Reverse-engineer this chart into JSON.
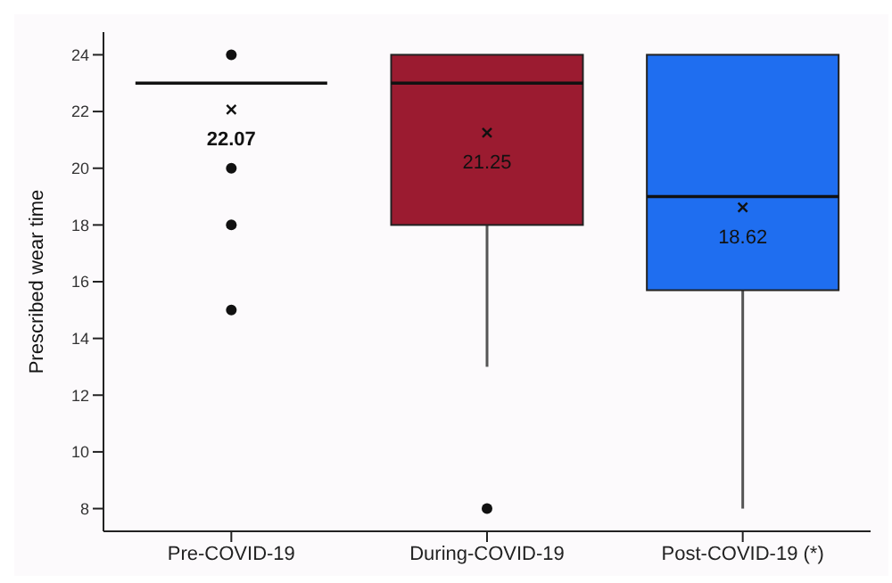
{
  "chart_data": {
    "type": "box",
    "ylabel": "Prescribed wear time",
    "categories": [
      "Pre-COVID-19",
      "During-COVID-19",
      "Post-COVID-19 (*)"
    ],
    "colors": [
      "#111111",
      "#9b1b30",
      "#1f6ef0"
    ],
    "boxes": [
      {
        "low": 23,
        "q1": 23,
        "median": 23,
        "q3": 23,
        "high": 23,
        "mean": 22.07,
        "outliers": [
          24,
          20,
          18,
          15
        ]
      },
      {
        "low": 13,
        "q1": 18,
        "median": 23,
        "q3": 24,
        "high": 24,
        "mean": 21.25,
        "outliers": [
          8
        ]
      },
      {
        "low": 8,
        "q1": 15.7,
        "median": 19,
        "q3": 24,
        "high": 24,
        "mean": 18.62
      }
    ],
    "annotations": [
      "22.07",
      "21.25",
      "18.62"
    ],
    "ylim": [
      7.2,
      24.8
    ],
    "yticks": [
      8,
      10,
      12,
      14,
      16,
      18,
      20,
      22,
      24
    ],
    "grid": false,
    "legend": false
  }
}
